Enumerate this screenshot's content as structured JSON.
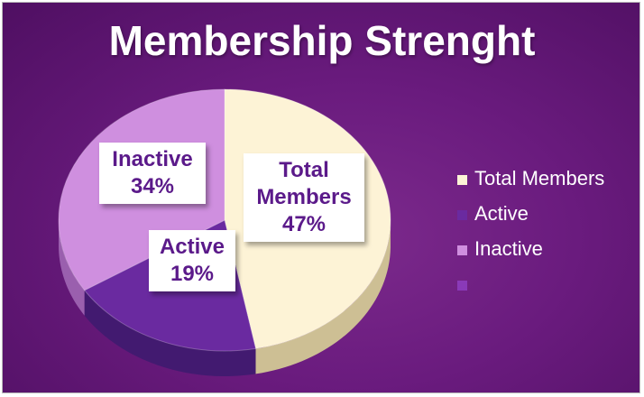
{
  "chart_data": {
    "type": "pie",
    "title": "Membership Strenght",
    "slices": [
      {
        "label": "Total Members",
        "value": 47,
        "value_label": "47%",
        "color": "#fdf3d6",
        "side_color": "#cdbf94"
      },
      {
        "label": "Active",
        "value": 19,
        "value_label": "19%",
        "color": "#6a2aa0",
        "side_color": "#421a70"
      },
      {
        "label": "Inactive",
        "value": 34,
        "value_label": "34%",
        "color": "#cf8fdf",
        "side_color": "#9a5fae"
      }
    ],
    "legend": {
      "position": "right",
      "entries": [
        {
          "label": "Total Members",
          "color": "#fdf3d6"
        },
        {
          "label": "Active",
          "color": "#6a2aa0"
        },
        {
          "label": "Inactive",
          "color": "#cf8fdf"
        },
        {
          "label": "",
          "color": "#8a3ab8"
        }
      ]
    },
    "style": "3d"
  }
}
